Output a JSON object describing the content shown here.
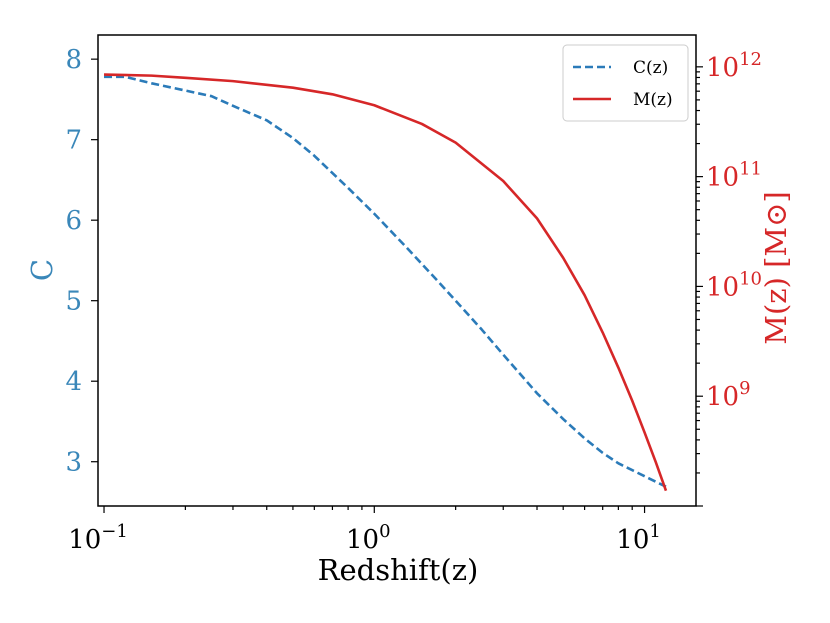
{
  "chart_data": {
    "type": "line",
    "xscale": "log",
    "xlim": [
      0.095,
      15.5
    ],
    "xlabel": "Redshift(z)",
    "xticks": [
      {
        "value": 0.1,
        "base": "10",
        "exp": "−1"
      },
      {
        "value": 1,
        "base": "10",
        "exp": "0"
      },
      {
        "value": 10,
        "base": "10",
        "exp": "1"
      }
    ],
    "left_axis": {
      "label": "C",
      "color": "#3a87b9",
      "ylim": [
        2.45,
        8.3
      ],
      "ticks": [
        "3",
        "4",
        "5",
        "6",
        "7",
        "8"
      ]
    },
    "right_axis": {
      "label": "M(z) [M⊙]",
      "color": "#d62728",
      "scale": "log",
      "ylim_log10": [
        8.0,
        12.29
      ],
      "ticks": [
        {
          "value_log10": 9,
          "base": "10",
          "exp": "9"
        },
        {
          "value_log10": 10,
          "base": "10",
          "exp": "10"
        },
        {
          "value_log10": 11,
          "base": "10",
          "exp": "11"
        },
        {
          "value_log10": 12,
          "base": "10",
          "exp": "12"
        }
      ]
    },
    "series": [
      {
        "name": "C(z)",
        "axis": "left",
        "style": "dashed",
        "color": "#2b7bb9",
        "x": [
          0.1,
          0.12,
          0.15,
          0.2,
          0.25,
          0.3,
          0.4,
          0.5,
          0.6,
          0.8,
          1.0,
          1.3,
          1.7,
          2.0,
          2.5,
          3.0,
          4.0,
          5.0,
          6.0,
          7.0,
          8.0,
          10.0,
          12.0
        ],
        "values": [
          7.78,
          7.78,
          7.7,
          7.61,
          7.54,
          7.42,
          7.24,
          7.02,
          6.8,
          6.4,
          6.08,
          5.68,
          5.26,
          5.0,
          4.64,
          4.33,
          3.85,
          3.53,
          3.29,
          3.11,
          2.98,
          2.82,
          2.69
        ]
      },
      {
        "name": "M(z)",
        "axis": "right",
        "style": "solid",
        "color": "#d62728",
        "x": [
          0.1,
          0.15,
          0.2,
          0.3,
          0.5,
          0.7,
          1.0,
          1.5,
          2.0,
          3.0,
          4.0,
          5.0,
          6.0,
          7.0,
          8.0,
          9.0,
          10.0,
          11.0,
          12.0
        ],
        "values_log10": [
          11.93,
          11.92,
          11.9,
          11.87,
          11.81,
          11.75,
          11.65,
          11.48,
          11.31,
          10.96,
          10.62,
          10.26,
          9.92,
          9.58,
          9.26,
          8.96,
          8.67,
          8.4,
          8.14
        ]
      }
    ],
    "legend": {
      "position": "top-right",
      "entries": [
        "C(z)",
        "M(z)"
      ]
    }
  }
}
